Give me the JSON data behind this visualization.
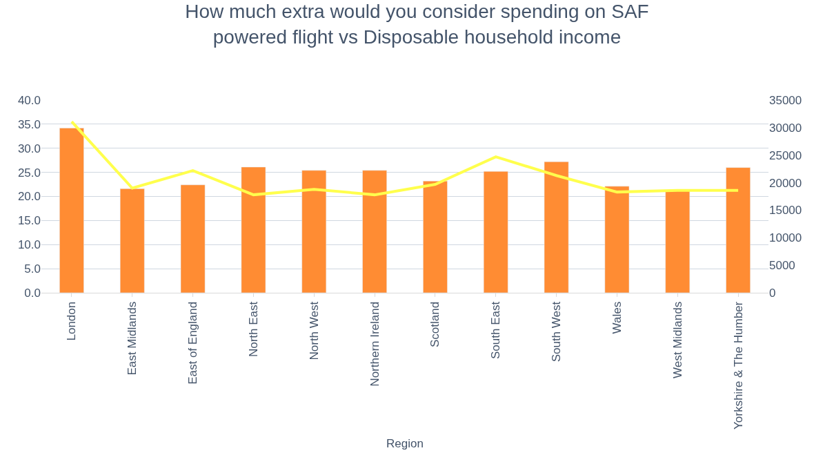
{
  "chart_data": {
    "type": "bar",
    "title": "How much extra would you consider spending on SAF powered flight vs Disposable household income",
    "xlabel": "Region",
    "categories": [
      "London",
      "East Midlands",
      "East of England",
      "North East",
      "North West",
      "Northern Ireland",
      "Scotland",
      "South East",
      "South West",
      "Wales",
      "West Midlands",
      "Yorkshire & The Humber"
    ],
    "series": [
      {
        "color": "#ff8c33",
        "values": [
          34.2,
          21.6,
          22.4,
          26.1,
          25.4,
          25.4,
          23.2,
          25.2,
          27.2,
          22.1,
          21.2,
          26.0
        ]
      },
      {
        "type": "line",
        "axis": "y2",
        "color": "#ffff4d",
        "values": [
          31100,
          19000,
          22200,
          17800,
          18800,
          17800,
          19700,
          24700,
          21300,
          18300,
          18600,
          18600
        ]
      }
    ],
    "ylim": [
      0,
      40
    ],
    "yticks": [
      {
        "value": 0,
        "label": "0.0"
      },
      {
        "value": 5,
        "label": "5.0"
      },
      {
        "value": 10,
        "label": "10.0"
      },
      {
        "value": 15,
        "label": "15.0"
      },
      {
        "value": 20,
        "label": "20.0"
      },
      {
        "value": 25,
        "label": "25.0"
      },
      {
        "value": 30,
        "label": "30.0"
      },
      {
        "value": 35,
        "label": "35.0"
      },
      {
        "value": 40,
        "label": "40.0"
      }
    ],
    "y2lim": [
      0,
      35000
    ],
    "y2ticks": [
      0,
      5000,
      10000,
      15000,
      20000,
      25000,
      30000,
      35000
    ],
    "grid": "y",
    "legend": false,
    "marker": "none"
  }
}
